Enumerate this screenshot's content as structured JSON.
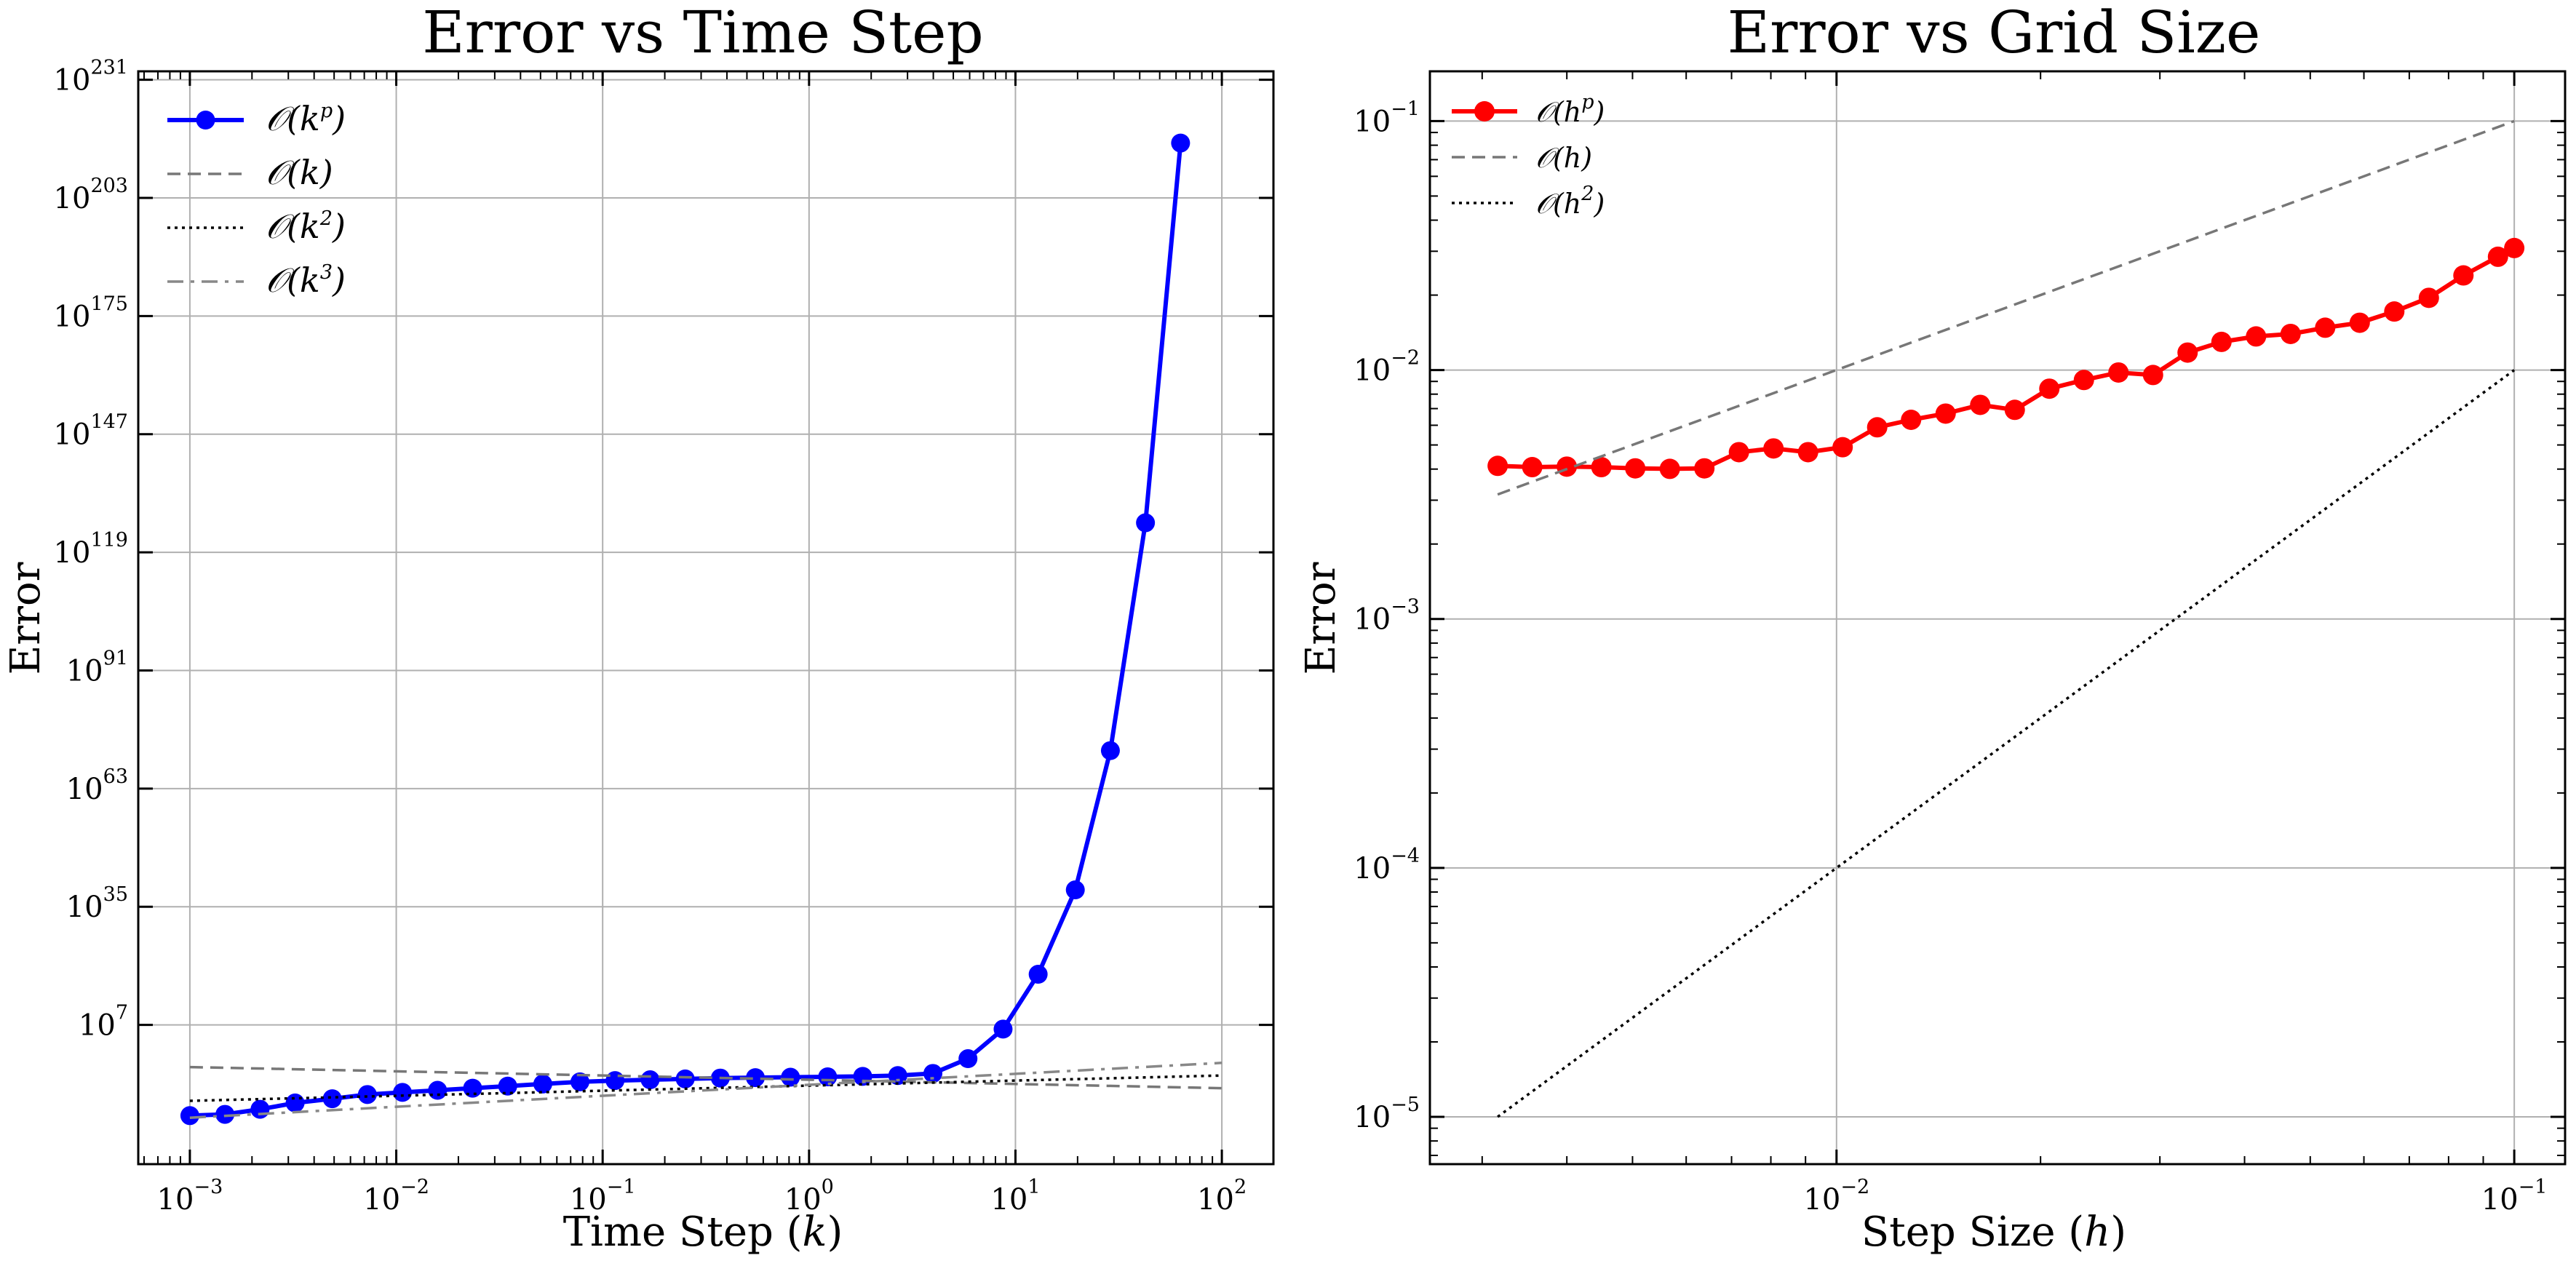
{
  "chart_data": [
    {
      "type": "line",
      "title": "Error vs Time Step",
      "xlabel": "Time Step (k)",
      "ylabel": "Error",
      "xscale": "log",
      "yscale": "log",
      "xlim_log10": [
        -3.25,
        2.25
      ],
      "ylim_log10": [
        -26,
        233
      ],
      "xticks": [
        {
          "label": "10",
          "exp": "−3",
          "value": -3
        },
        {
          "label": "10",
          "exp": "−2",
          "value": -2
        },
        {
          "label": "10",
          "exp": "−1",
          "value": -1
        },
        {
          "label": "10",
          "exp": "0",
          "value": 0
        },
        {
          "label": "10",
          "exp": "1",
          "value": 1
        },
        {
          "label": "10",
          "exp": "2",
          "value": 2
        }
      ],
      "yticks": [
        {
          "label": "10",
          "exp": "7",
          "value": 7
        },
        {
          "label": "10",
          "exp": "35",
          "value": 35
        },
        {
          "label": "10",
          "exp": "63",
          "value": 63
        },
        {
          "label": "10",
          "exp": "91",
          "value": 91
        },
        {
          "label": "10",
          "exp": "119",
          "value": 119
        },
        {
          "label": "10",
          "exp": "147",
          "value": 147
        },
        {
          "label": "10",
          "exp": "175",
          "value": 175
        },
        {
          "label": "10",
          "exp": "203",
          "value": 203
        },
        {
          "label": "10",
          "exp": "231",
          "value": 231
        }
      ],
      "grid": true,
      "legend_position": "top-left",
      "series": [
        {
          "name": "O(k^p)",
          "legend": {
            "pre": "𝒪(k",
            "sup": "p",
            "post": ")"
          },
          "color": "#0000ff",
          "marker": "circle",
          "log10x": [
            -3.0,
            -2.83,
            -2.66,
            -2.49,
            -2.31,
            -2.14,
            -1.97,
            -1.8,
            -1.63,
            -1.46,
            -1.29,
            -1.11,
            -0.94,
            -0.77,
            -0.6,
            -0.43,
            -0.26,
            -0.09,
            0.09,
            0.26,
            0.43,
            0.6,
            0.77,
            0.94,
            1.11,
            1.29,
            1.46,
            1.63,
            1.8
          ],
          "log10y": [
            -14.5,
            -14.2,
            -13.0,
            -11.5,
            -10.5,
            -9.5,
            -9.0,
            -8.5,
            -8.0,
            -7.5,
            -7.0,
            -6.5,
            -6.2,
            -6.0,
            -5.8,
            -5.6,
            -5.5,
            -5.4,
            -5.3,
            -5.2,
            -5.0,
            -4.5,
            -1.0,
            6.0,
            19.0,
            39.0,
            72.0,
            126.0,
            216.0
          ]
        },
        {
          "name": "O(k)",
          "legend": {
            "pre": "𝒪(k)",
            "sup": "",
            "post": ""
          },
          "color": "#777777",
          "dash": "dashed",
          "log10x": [
            -3.0,
            2.0
          ],
          "log10y": [
            -3.0,
            -8.0
          ]
        },
        {
          "name": "O(k^2)",
          "legend": {
            "pre": "𝒪(k",
            "sup": "2",
            "post": ")"
          },
          "color": "#000000",
          "dash": "dotted",
          "log10x": [
            -3.0,
            2.0
          ],
          "log10y": [
            -11.0,
            -5.0
          ]
        },
        {
          "name": "O(k^3)",
          "legend": {
            "pre": "𝒪(k",
            "sup": "3",
            "post": ")"
          },
          "color": "#888888",
          "dash": "dashdot",
          "log10x": [
            -3.0,
            2.0
          ],
          "log10y": [
            -15.0,
            -2.0
          ]
        }
      ]
    },
    {
      "type": "line",
      "title": "Error vs Grid Size",
      "xlabel": "Step Size (h)",
      "ylabel": "Error",
      "xscale": "log",
      "yscale": "log",
      "xlim_log10": [
        -2.6,
        -0.925
      ],
      "ylim_log10": [
        -5.19,
        -0.8
      ],
      "xticks": [
        {
          "label": "10",
          "exp": "−2",
          "value": -2
        },
        {
          "label": "10",
          "exp": "−1",
          "value": -1
        }
      ],
      "yticks": [
        {
          "label": "10",
          "exp": "−5",
          "value": -5
        },
        {
          "label": "10",
          "exp": "−4",
          "value": -4
        },
        {
          "label": "10",
          "exp": "−3",
          "value": -3
        },
        {
          "label": "10",
          "exp": "−2",
          "value": -2
        },
        {
          "label": "10",
          "exp": "−1",
          "value": -1
        }
      ],
      "grid": true,
      "legend_position": "top-left",
      "series": [
        {
          "name": "O(h^p)",
          "legend": {
            "pre": "𝒪(h",
            "sup": "p",
            "post": ")"
          },
          "color": "#ff0000",
          "marker": "circle",
          "log10x": [
            -2.5,
            -2.449,
            -2.398,
            -2.347,
            -2.297,
            -2.246,
            -2.195,
            -2.144,
            -2.093,
            -2.042,
            -1.991,
            -1.94,
            -1.89,
            -1.839,
            -1.788,
            -1.737,
            -1.686,
            -1.635,
            -1.584,
            -1.533,
            -1.482,
            -1.432,
            -1.381,
            -1.33,
            -1.279,
            -1.228,
            -1.177,
            -1.126,
            -1.075,
            -1.024,
            -1.0
          ],
          "log10y": [
            -2.385,
            -2.39,
            -2.388,
            -2.39,
            -2.395,
            -2.397,
            -2.395,
            -2.33,
            -2.315,
            -2.33,
            -2.31,
            -2.23,
            -2.2,
            -2.175,
            -2.14,
            -2.16,
            -2.075,
            -2.04,
            -2.01,
            -2.02,
            -1.93,
            -1.887,
            -1.865,
            -1.855,
            -1.83,
            -1.81,
            -1.765,
            -1.71,
            -1.62,
            -1.545,
            -1.51
          ]
        },
        {
          "name": "O(h)",
          "legend": {
            "pre": "𝒪(h)",
            "sup": "",
            "post": ""
          },
          "color": "#777777",
          "dash": "dashed",
          "log10x": [
            -2.5,
            -1.0
          ],
          "log10y": [
            -2.5,
            -1.0
          ]
        },
        {
          "name": "O(h^2)",
          "legend": {
            "pre": "𝒪(h",
            "sup": "2",
            "post": ")"
          },
          "color": "#000000",
          "dash": "dotted",
          "log10x": [
            -2.5,
            -1.0
          ],
          "log10y": [
            -5.0,
            -2.0
          ]
        }
      ]
    }
  ]
}
